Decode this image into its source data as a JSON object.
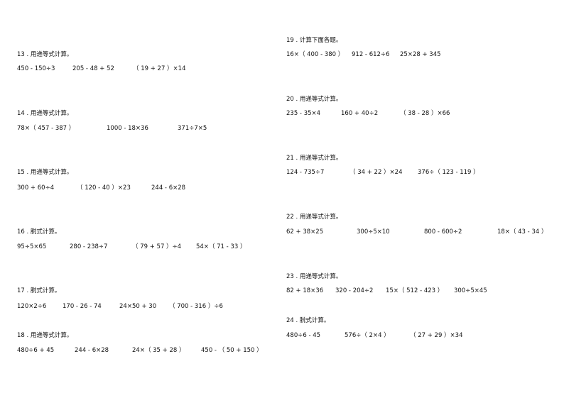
{
  "questions": [
    {
      "title": "13 . 用递等式计算。",
      "exprs": [
        "450 - 150÷3",
        "205 - 48 + 52",
        "（ 19 + 27 ）×14"
      ]
    },
    {
      "title": "14 . 用递等式计算。",
      "exprs": [
        "78×（ 457 - 387 ）",
        "1000 - 18×36",
        "371÷7×5"
      ]
    },
    {
      "title": "15 . 用递等式计算。",
      "exprs": [
        "300 + 60÷4",
        "（ 120 - 40 ）×23",
        "244 - 6×28"
      ]
    },
    {
      "title": "16 . 脱式计算。",
      "exprs": [
        "95÷5×65",
        "280 - 238÷7",
        "（ 79 + 57 ）÷4",
        "54×（ 71 - 33 ）"
      ]
    },
    {
      "title": "17 . 脱式计算。",
      "exprs": [
        "120×2÷6",
        "170 - 26 - 74",
        "24×50 + 30",
        "（ 700 - 316 ）÷6"
      ]
    },
    {
      "title": "18 . 用递等式计算。",
      "exprs": [
        "480÷6 + 45",
        "244 - 6×28",
        "24×（ 35 + 28 ）",
        "450 - （ 50 + 150 ）"
      ]
    },
    {
      "title": "19 . 计算下面各题。",
      "exprs": [
        "16×（ 400 - 380 ）",
        "912 - 612÷6",
        "25×28 + 345"
      ]
    },
    {
      "title": "20 . 用递等式计算。",
      "exprs": [
        "235 - 35×4",
        "160 + 40÷2",
        "（ 38 - 28 ）×66"
      ]
    },
    {
      "title": "21 . 用递等式计算。",
      "exprs": [
        "124 - 735÷7",
        "（ 34 + 22 ）×24",
        "376÷（ 123 - 119 ）"
      ]
    },
    {
      "title": "22 . 用递等式计算。",
      "exprs": [
        "62 + 38×25",
        "300÷5×10",
        "800 - 600÷2",
        "18×（ 43 - 34 ）"
      ]
    },
    {
      "title": "23 . 用递等式计算。",
      "exprs": [
        "82 + 18×36",
        "320 - 204÷2",
        "15×（ 512 - 423 ）",
        "300÷5×45"
      ]
    },
    {
      "title": "24 . 脱式计算。",
      "exprs": [
        "480÷6 - 45",
        "576÷（ 2×4 ）",
        "（ 27 + 29 ）×34"
      ]
    }
  ]
}
